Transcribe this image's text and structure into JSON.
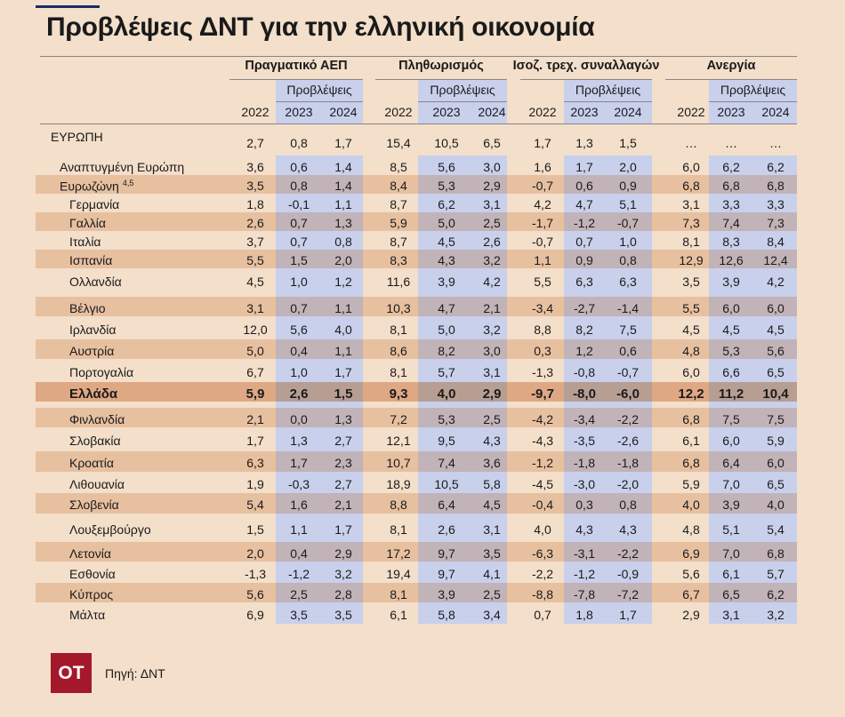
{
  "title": "Προβλέψεις ΔΝΤ για την ελληνική οικονομία",
  "groups": [
    "Πραγματικό ΑΕΠ",
    "Πληθωρισμός",
    "Ισοζ. τρεχ. συναλλαγών",
    "Ανεργία"
  ],
  "forecast_label": "Προβλέψεις",
  "years": [
    "2022",
    "2023",
    "2024"
  ],
  "rows": [
    {
      "name": "ΕΥΡΩΠΗ",
      "values": [
        "2,7",
        "0,8",
        "1,7",
        "15,4",
        "10,5",
        "6,5",
        "1,7",
        "1,3",
        "1,5",
        "…",
        "…",
        "…"
      ]
    },
    {
      "name": "Αναπτυγμένη Ευρώπη",
      "values": [
        "3,6",
        "0,6",
        "1,4",
        "8,5",
        "5,6",
        "3,0",
        "1,6",
        "1,7",
        "2,0",
        "6,0",
        "6,2",
        "6,2"
      ]
    },
    {
      "name": "Ευρωζώνη",
      "sup": "4,5",
      "values": [
        "3,5",
        "0,8",
        "1,4",
        "8,4",
        "5,3",
        "2,9",
        "-0,7",
        "0,6",
        "0,9",
        "6,8",
        "6,8",
        "6,8"
      ]
    },
    {
      "name": "Γερμανία",
      "values": [
        "1,8",
        "-0,1",
        "1,1",
        "8,7",
        "6,2",
        "3,1",
        "4,2",
        "4,7",
        "5,1",
        "3,1",
        "3,3",
        "3,3"
      ]
    },
    {
      "name": "Γαλλία",
      "values": [
        "2,6",
        "0,7",
        "1,3",
        "5,9",
        "5,0",
        "2,5",
        "-1,7",
        "-1,2",
        "-0,7",
        "7,3",
        "7,4",
        "7,3"
      ]
    },
    {
      "name": "Ιταλία",
      "values": [
        "3,7",
        "0,7",
        "0,8",
        "8,7",
        "4,5",
        "2,6",
        "-0,7",
        "0,7",
        "1,0",
        "8,1",
        "8,3",
        "8,4"
      ]
    },
    {
      "name": "Ισπανία",
      "values": [
        "5,5",
        "1,5",
        "2,0",
        "8,3",
        "4,3",
        "3,2",
        "1,1",
        "0,9",
        "0,8",
        "12,9",
        "12,6",
        "12,4"
      ]
    },
    {
      "name": "Ολλανδία",
      "values": [
        "4,5",
        "1,0",
        "1,2",
        "11,6",
        "3,9",
        "4,2",
        "5,5",
        "6,3",
        "6,3",
        "3,5",
        "3,9",
        "4,2"
      ]
    },
    {
      "name": "Βέλγιο",
      "values": [
        "3,1",
        "0,7",
        "1,1",
        "10,3",
        "4,7",
        "2,1",
        "-3,4",
        "-2,7",
        "-1,4",
        "5,5",
        "6,0",
        "6,0"
      ]
    },
    {
      "name": "Ιρλανδία",
      "values": [
        "12,0",
        "5,6",
        "4,0",
        "8,1",
        "5,0",
        "3,2",
        "8,8",
        "8,2",
        "7,5",
        "4,5",
        "4,5",
        "4,5"
      ]
    },
    {
      "name": "Αυστρία",
      "values": [
        "5,0",
        "0,4",
        "1,1",
        "8,6",
        "8,2",
        "3,0",
        "0,3",
        "1,2",
        "0,6",
        "4,8",
        "5,3",
        "5,6"
      ]
    },
    {
      "name": "Πορτογαλία",
      "values": [
        "6,7",
        "1,0",
        "1,7",
        "8,1",
        "5,7",
        "3,1",
        "-1,3",
        "-0,8",
        "-0,7",
        "6,0",
        "6,6",
        "6,5"
      ]
    },
    {
      "name": "Ελλάδα",
      "values": [
        "5,9",
        "2,6",
        "1,5",
        "9,3",
        "4,0",
        "2,9",
        "-9,7",
        "-8,0",
        "-6,0",
        "12,2",
        "11,2",
        "10,4"
      ]
    },
    {
      "name": "Φινλανδία",
      "values": [
        "2,1",
        "0,0",
        "1,3",
        "7,2",
        "5,3",
        "2,5",
        "-4,2",
        "-3,4",
        "-2,2",
        "6,8",
        "7,5",
        "7,5"
      ]
    },
    {
      "name": "Σλοβακία",
      "values": [
        "1,7",
        "1,3",
        "2,7",
        "12,1",
        "9,5",
        "4,3",
        "-4,3",
        "-3,5",
        "-2,6",
        "6,1",
        "6,0",
        "5,9"
      ]
    },
    {
      "name": "Κροατία",
      "values": [
        "6,3",
        "1,7",
        "2,3",
        "10,7",
        "7,4",
        "3,6",
        "-1,2",
        "-1,8",
        "-1,8",
        "6,8",
        "6,4",
        "6,0"
      ]
    },
    {
      "name": "Λιθουανία",
      "values": [
        "1,9",
        "-0,3",
        "2,7",
        "18,9",
        "10,5",
        "5,8",
        "-4,5",
        "-3,0",
        "-2,0",
        "5,9",
        "7,0",
        "6,5"
      ]
    },
    {
      "name": "Σλοβενία",
      "values": [
        "5,4",
        "1,6",
        "2,1",
        "8,8",
        "6,4",
        "4,5",
        "-0,4",
        "0,3",
        "0,8",
        "4,0",
        "3,9",
        "4,0"
      ]
    },
    {
      "name": "Λουξεμβούργο",
      "values": [
        "1,5",
        "1,1",
        "1,7",
        "8,1",
        "2,6",
        "3,1",
        "4,0",
        "4,3",
        "4,3",
        "4,8",
        "5,1",
        "5,4"
      ]
    },
    {
      "name": "Λετονία",
      "values": [
        "2,0",
        "0,4",
        "2,9",
        "17,2",
        "9,7",
        "3,5",
        "-6,3",
        "-3,1",
        "-2,2",
        "6,9",
        "7,0",
        "6,8"
      ]
    },
    {
      "name": "Εσθονία",
      "values": [
        "-1,3",
        "-1,2",
        "3,2",
        "19,4",
        "9,7",
        "4,1",
        "-2,2",
        "-1,2",
        "-0,9",
        "5,6",
        "6,1",
        "5,7"
      ]
    },
    {
      "name": "Κύπρος",
      "values": [
        "5,6",
        "2,5",
        "2,8",
        "8,1",
        "3,9",
        "2,5",
        "-8,8",
        "-7,8",
        "-7,2",
        "6,7",
        "6,5",
        "6,2"
      ]
    },
    {
      "name": "Μάλτα",
      "values": [
        "6,9",
        "3,5",
        "3,5",
        "6,1",
        "5,8",
        "3,4",
        "0,7",
        "1,8",
        "1,7",
        "2,9",
        "3,1",
        "3,2"
      ]
    }
  ],
  "footer": {
    "logo": "OT",
    "source": "Πηγή: ΔΝΤ"
  },
  "colors": {
    "background": "#f3dfca",
    "forecast_band": "#c8d0ec",
    "stripe": "#e7c0a0",
    "highlight": "#dfa884",
    "logo": "#a3192b"
  }
}
